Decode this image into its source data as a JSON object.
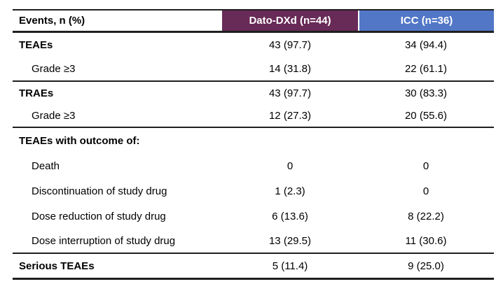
{
  "colors": {
    "dato_header_bg": "#682a57",
    "icc_header_bg": "#5277c7",
    "rule_color": "#1f1f1f",
    "header_text": "#ffffff",
    "body_text": "#000000"
  },
  "table": {
    "header": {
      "events_label": "Events, n (%)",
      "dato_label": "Dato-DXd (n=44)",
      "icc_label": "ICC (n=36)"
    },
    "rows": [
      {
        "label": "TEAEs",
        "dato": "43 (97.7)",
        "icc": "34 (94.4)"
      },
      {
        "label": "Grade ≥3",
        "dato": "14 (31.8)",
        "icc": "22 (61.1)"
      },
      {
        "label": "TRAEs",
        "dato": "43 (97.7)",
        "icc": "30 (83.3)"
      },
      {
        "label": "Grade ≥3",
        "dato": "12 (27.3)",
        "icc": "20 (55.6)"
      },
      {
        "label": "TEAEs with outcome of:",
        "dato": "",
        "icc": ""
      },
      {
        "label": "Death",
        "dato": "0",
        "icc": "0"
      },
      {
        "label": "Discontinuation of study drug",
        "dato": "1 (2.3)",
        "icc": "0"
      },
      {
        "label": "Dose reduction of study drug",
        "dato": "6 (13.6)",
        "icc": "8 (22.2)"
      },
      {
        "label": "Dose interruption of study drug",
        "dato": "13 (29.5)",
        "icc": "11 (30.6)"
      },
      {
        "label": "Serious TEAEs",
        "dato": "5 (11.4)",
        "icc": "9 (25.0)"
      }
    ]
  }
}
